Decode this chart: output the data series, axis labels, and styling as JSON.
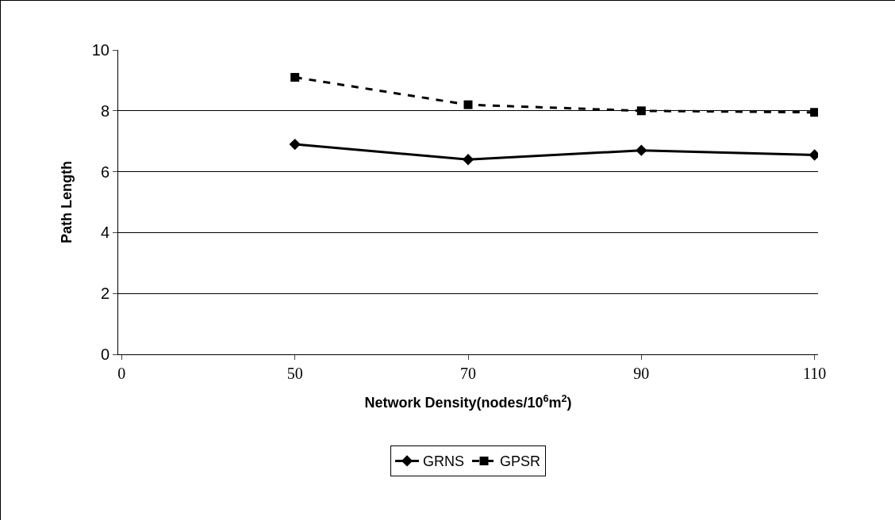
{
  "chart_data": {
    "type": "line",
    "xlabel": "Network Density(nodes/10$^{6}$m$^{2}$)",
    "ylabel": "Path Length",
    "categories": [
      "0",
      "50",
      "70",
      "90",
      "110"
    ],
    "series": [
      {
        "name": "GRNS",
        "color": "#000000",
        "marker": "diamond",
        "line_style": "solid",
        "values": [
          null,
          6.9,
          6.4,
          6.7,
          6.55
        ]
      },
      {
        "name": "GPSR",
        "color": "#000000",
        "marker": "square",
        "line_style": "dashed",
        "values": [
          null,
          9.1,
          8.2,
          8.0,
          7.95
        ]
      }
    ],
    "ylim": [
      0,
      10
    ],
    "yticks": [
      0,
      2,
      4,
      6,
      8,
      10
    ],
    "grid": "y",
    "legend": "bottom"
  }
}
